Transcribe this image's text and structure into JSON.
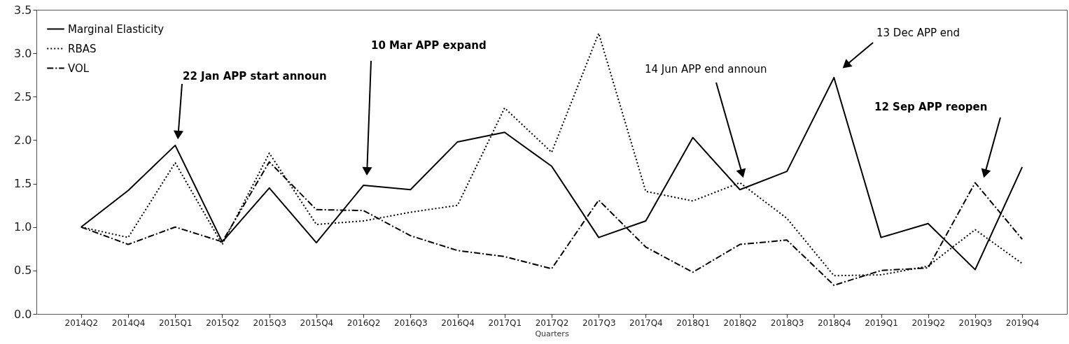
{
  "chart_data": {
    "type": "line",
    "xlabel": "Quarters",
    "categories": [
      "2014Q2",
      "2014Q4",
      "2015Q1",
      "2015Q2",
      "2015Q3",
      "2015Q4",
      "2016Q2",
      "2016Q3",
      "2016Q4",
      "2017Q1",
      "2017Q2",
      "2017Q3",
      "2017Q4",
      "2018Q1",
      "2018Q2",
      "2018Q3",
      "2018Q4",
      "2019Q1",
      "2019Q2",
      "2019Q3",
      "2019Q4"
    ],
    "series": [
      {
        "name": "Marginal Elasticity",
        "color": "#000000",
        "line_style": "solid",
        "values": [
          1.0,
          1.42,
          1.94,
          0.83,
          1.45,
          0.82,
          1.48,
          1.43,
          1.98,
          2.09,
          1.7,
          0.88,
          1.07,
          2.03,
          1.43,
          1.64,
          2.72,
          0.88,
          1.04,
          0.51,
          1.69
        ]
      },
      {
        "name": "RBAS",
        "color": "#000000",
        "line_style": "dotted",
        "values": [
          1.0,
          0.88,
          1.74,
          0.8,
          1.85,
          1.03,
          1.07,
          1.17,
          1.25,
          2.37,
          1.86,
          3.23,
          1.41,
          1.3,
          1.51,
          1.1,
          0.44,
          0.45,
          0.55,
          0.97,
          0.58
        ]
      },
      {
        "name": "VOL",
        "color": "#000000",
        "line_style": "dashdot",
        "values": [
          1.0,
          0.8,
          1.0,
          0.83,
          1.75,
          1.2,
          1.19,
          0.9,
          0.73,
          0.66,
          0.52,
          1.31,
          0.77,
          0.48,
          0.8,
          0.85,
          0.33,
          0.5,
          0.53,
          1.51,
          0.86
        ]
      }
    ],
    "ylim": [
      0,
      3.5
    ],
    "yticks": [
      {
        "value": 0,
        "label": "0.0"
      },
      0.5,
      {
        "value": 1,
        "label": "1.0"
      },
      1.5,
      {
        "value": 2,
        "label": "2.0"
      },
      2.5,
      {
        "value": 3,
        "label": "3.0"
      },
      3.5
    ],
    "grid": false,
    "legend": "top left",
    "marker": "none",
    "annotations": [
      "22 Jan APP start announ",
      "10 Mar APP expand",
      "14 Jun APP end announ",
      "13 Dec APP end",
      "12 Sep APP reopen"
    ]
  }
}
